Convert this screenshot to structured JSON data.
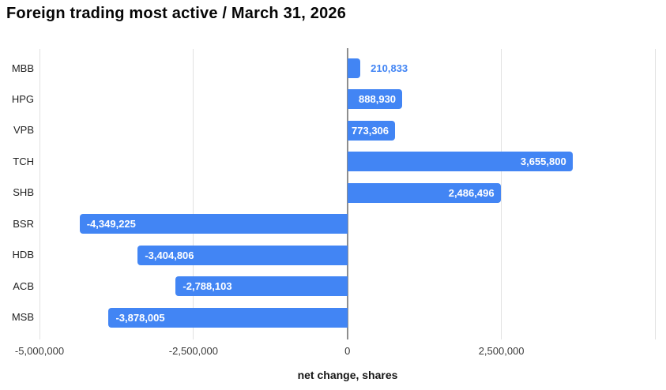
{
  "chart_data": {
    "type": "bar",
    "orientation": "horizontal",
    "title": "Foreign trading most active / March 31, 2026",
    "xlabel": "net change, shares",
    "ylabel": "",
    "categories": [
      "MBB",
      "HPG",
      "VPB",
      "TCH",
      "SHB",
      "BSR",
      "HDB",
      "ACB",
      "MSB"
    ],
    "values": [
      210833,
      888930,
      773306,
      3655800,
      2486496,
      -4349225,
      -3404806,
      -2788103,
      -3878005
    ],
    "value_labels": [
      "210,833",
      "888,930",
      "773,306",
      "3,655,800",
      "2,486,496",
      "-4,349,225",
      "-3,404,806",
      "-2,788,103",
      "-3,878,005"
    ],
    "xlim": [
      -5000000,
      5000000
    ],
    "x_ticks": [
      {
        "value": -5000000,
        "label": "-5,000,000"
      },
      {
        "value": -2500000,
        "label": "-2,500,000"
      },
      {
        "value": 0,
        "label": "0"
      },
      {
        "value": 2500000,
        "label": "2,500,000"
      },
      {
        "value": 5000000,
        "label": ""
      }
    ],
    "grid": true,
    "legend": "none",
    "bar_color": "#4285f4",
    "label_color_inside": "#ffffff",
    "label_color_outside": "#4285f4",
    "gridline_color": "#e1e1e1",
    "zero_line_color": "#8d8d8d"
  }
}
